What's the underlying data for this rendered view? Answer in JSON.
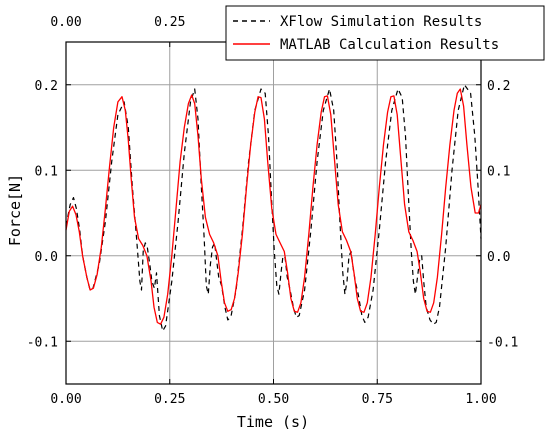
{
  "chart_data": {
    "type": "line",
    "title": "",
    "xlabel": "Time (s)",
    "ylabel": "Force[N]",
    "xlim": [
      0,
      1.0
    ],
    "ylim": [
      -0.15,
      0.25
    ],
    "grid": true,
    "legend_position": "top-right",
    "x_ticks": [
      {
        "value": 0,
        "label": "0.00"
      },
      {
        "value": 0.25,
        "label": "0.25"
      },
      {
        "value": 0.5,
        "label": "0.50"
      },
      {
        "value": 0.75,
        "label": "0.75"
      },
      {
        "value": 1.0,
        "label": "1.00"
      }
    ],
    "x_top_ticks": [
      {
        "value": 0,
        "label": "0.00"
      },
      {
        "value": 0.25,
        "label": "0.25"
      }
    ],
    "y_ticks": [
      {
        "value": -0.1,
        "label": "-0.1"
      },
      {
        "value": 0,
        "label": "0.0"
      },
      {
        "value": 0.1,
        "label": "0.1"
      },
      {
        "value": 0.2,
        "label": "0.2"
      }
    ],
    "y_right_ticks": [
      {
        "value": -0.1,
        "label": "-0.1"
      },
      {
        "value": 0,
        "label": "0.0"
      },
      {
        "value": 0.1,
        "label": "0.1"
      },
      {
        "value": 0.2,
        "label": "0.2"
      }
    ],
    "series": [
      {
        "name": "XFlow Simulation Results",
        "color": "#000000",
        "dashed": true,
        "x": [
          0.0,
          0.01,
          0.018,
          0.025,
          0.033,
          0.04,
          0.05,
          0.058,
          0.065,
          0.08,
          0.095,
          0.11,
          0.125,
          0.14,
          0.15,
          0.16,
          0.17,
          0.178,
          0.182,
          0.186,
          0.191,
          0.196,
          0.202,
          0.207,
          0.213,
          0.218,
          0.225,
          0.233,
          0.24,
          0.255,
          0.27,
          0.285,
          0.3,
          0.31,
          0.318,
          0.325,
          0.333,
          0.338,
          0.343,
          0.348,
          0.353,
          0.358,
          0.363,
          0.368,
          0.375,
          0.383,
          0.39,
          0.397,
          0.41,
          0.425,
          0.44,
          0.455,
          0.47,
          0.48,
          0.488,
          0.495,
          0.502,
          0.508,
          0.513,
          0.518,
          0.523,
          0.528,
          0.533,
          0.54,
          0.548,
          0.555,
          0.562,
          0.575,
          0.59,
          0.605,
          0.62,
          0.635,
          0.645,
          0.653,
          0.66,
          0.667,
          0.672,
          0.677,
          0.682,
          0.687,
          0.692,
          0.697,
          0.704,
          0.713,
          0.72,
          0.728,
          0.74,
          0.755,
          0.77,
          0.785,
          0.8,
          0.81,
          0.818,
          0.825,
          0.832,
          0.837,
          0.842,
          0.847,
          0.852,
          0.857,
          0.862,
          0.868,
          0.877,
          0.885,
          0.892,
          0.9,
          0.915,
          0.93,
          0.945,
          0.96,
          0.975,
          0.985,
          0.993,
          1.0
        ],
        "y": [
          0.035,
          0.06,
          0.068,
          0.055,
          0.03,
          0.0,
          -0.025,
          -0.04,
          -0.038,
          -0.01,
          0.04,
          0.11,
          0.165,
          0.18,
          0.15,
          0.08,
          0.02,
          -0.03,
          -0.04,
          0.005,
          0.015,
          0.01,
          -0.01,
          -0.03,
          -0.038,
          -0.02,
          -0.07,
          -0.088,
          -0.082,
          -0.03,
          0.04,
          0.12,
          0.18,
          0.195,
          0.16,
          0.09,
          0.02,
          -0.035,
          -0.045,
          -0.01,
          0.01,
          0.015,
          -0.005,
          -0.025,
          -0.035,
          -0.06,
          -0.075,
          -0.072,
          -0.04,
          0.03,
          0.11,
          0.17,
          0.195,
          0.19,
          0.14,
          0.07,
          0.005,
          -0.035,
          -0.045,
          -0.02,
          0.0,
          -0.002,
          -0.025,
          -0.04,
          -0.06,
          -0.072,
          -0.07,
          -0.04,
          0.03,
          0.11,
          0.17,
          0.195,
          0.17,
          0.11,
          0.04,
          -0.02,
          -0.045,
          -0.03,
          0.0,
          0.005,
          -0.015,
          -0.03,
          -0.045,
          -0.07,
          -0.078,
          -0.072,
          -0.04,
          0.03,
          0.11,
          0.17,
          0.195,
          0.185,
          0.14,
          0.07,
          0.005,
          -0.03,
          -0.045,
          -0.025,
          -0.005,
          0.0,
          -0.03,
          -0.06,
          -0.075,
          -0.08,
          -0.078,
          -0.06,
          0.01,
          0.1,
          0.17,
          0.2,
          0.19,
          0.14,
          0.08,
          0.02
        ]
      },
      {
        "name": "MATLAB Calculation Results",
        "color": "#ff0000",
        "dashed": false,
        "x": [
          0.0,
          0.008,
          0.016,
          0.024,
          0.032,
          0.04,
          0.05,
          0.058,
          0.066,
          0.075,
          0.085,
          0.095,
          0.105,
          0.115,
          0.125,
          0.135,
          0.143,
          0.15,
          0.157,
          0.165,
          0.175,
          0.185,
          0.195,
          0.205,
          0.212,
          0.22,
          0.228,
          0.236,
          0.245,
          0.255,
          0.265,
          0.275,
          0.285,
          0.295,
          0.303,
          0.31,
          0.318,
          0.326,
          0.336,
          0.346,
          0.356,
          0.366,
          0.374,
          0.382,
          0.39,
          0.398,
          0.406,
          0.415,
          0.425,
          0.435,
          0.445,
          0.455,
          0.463,
          0.47,
          0.478,
          0.486,
          0.496,
          0.506,
          0.516,
          0.526,
          0.534,
          0.542,
          0.55,
          0.558,
          0.566,
          0.575,
          0.585,
          0.595,
          0.605,
          0.615,
          0.623,
          0.63,
          0.638,
          0.646,
          0.656,
          0.666,
          0.676,
          0.686,
          0.694,
          0.702,
          0.71,
          0.718,
          0.726,
          0.735,
          0.745,
          0.755,
          0.765,
          0.775,
          0.783,
          0.79,
          0.798,
          0.806,
          0.816,
          0.826,
          0.836,
          0.846,
          0.854,
          0.862,
          0.87,
          0.878,
          0.886,
          0.895,
          0.905,
          0.915,
          0.925,
          0.935,
          0.943,
          0.95,
          0.958,
          0.966,
          0.976,
          0.986,
          0.994,
          1.0
        ],
        "y": [
          0.03,
          0.052,
          0.058,
          0.048,
          0.028,
          0.0,
          -0.025,
          -0.04,
          -0.038,
          -0.022,
          0.01,
          0.055,
          0.105,
          0.15,
          0.18,
          0.186,
          0.17,
          0.135,
          0.09,
          0.045,
          0.02,
          0.012,
          0.0,
          -0.03,
          -0.06,
          -0.078,
          -0.08,
          -0.072,
          -0.045,
          0.0,
          0.055,
          0.11,
          0.15,
          0.178,
          0.188,
          0.178,
          0.14,
          0.09,
          0.045,
          0.025,
          0.015,
          0.0,
          -0.03,
          -0.055,
          -0.065,
          -0.063,
          -0.05,
          -0.02,
          0.025,
          0.08,
          0.13,
          0.168,
          0.186,
          0.185,
          0.16,
          0.11,
          0.055,
          0.025,
          0.015,
          0.005,
          -0.02,
          -0.05,
          -0.065,
          -0.066,
          -0.055,
          -0.025,
          0.025,
          0.08,
          0.13,
          0.168,
          0.186,
          0.187,
          0.165,
          0.118,
          0.06,
          0.028,
          0.018,
          0.005,
          -0.02,
          -0.05,
          -0.065,
          -0.066,
          -0.055,
          -0.025,
          0.025,
          0.08,
          0.13,
          0.168,
          0.186,
          0.187,
          0.165,
          0.118,
          0.06,
          0.028,
          0.018,
          0.005,
          -0.02,
          -0.05,
          -0.065,
          -0.066,
          -0.055,
          -0.025,
          0.025,
          0.08,
          0.13,
          0.17,
          0.19,
          0.195,
          0.175,
          0.13,
          0.08,
          0.05,
          0.05,
          0.06
        ]
      }
    ]
  }
}
